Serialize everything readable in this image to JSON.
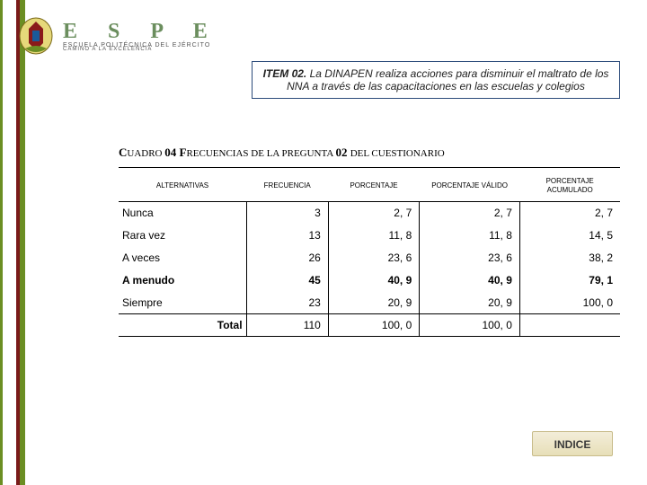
{
  "brand": {
    "letters": "E S P E",
    "sub": "ESCUELA POLITÉCNICA DEL EJÉRCITO",
    "tag": "CAMINO A LA EXCELENCIA"
  },
  "itemBox": {
    "label": "ITEM 02.",
    "text": " La DINAPEN realiza acciones para disminuir el maltrato de los NNA a través de las capacitaciones en las escuelas y colegios"
  },
  "cuadroTitle": "CUADRO 04 FRECUENCIAS DE LA PREGUNTA 02 DEL CUESTIONARIO",
  "table": {
    "headers": [
      "ALTERNATIVAS",
      "FRECUENCIA",
      "PORCENTAJE",
      "PORCENTAJE VÁLIDO",
      "PORCENTAJE ACUMULADO"
    ],
    "rows": [
      {
        "alt": "Nunca",
        "freq": "3",
        "pct": "2, 7",
        "pctv": "2, 7",
        "pcta": "2, 7",
        "bold": false
      },
      {
        "alt": "Rara vez",
        "freq": "13",
        "pct": "11, 8",
        "pctv": "11, 8",
        "pcta": "14, 5",
        "bold": false
      },
      {
        "alt": "A veces",
        "freq": "26",
        "pct": "23, 6",
        "pctv": "23, 6",
        "pcta": "38, 2",
        "bold": false
      },
      {
        "alt": "A menudo",
        "freq": "45",
        "pct": "40, 9",
        "pctv": "40, 9",
        "pcta": "79, 1",
        "bold": true
      },
      {
        "alt": "Siempre",
        "freq": "23",
        "pct": "20, 9",
        "pctv": "20, 9",
        "pcta": "100, 0",
        "bold": false
      }
    ],
    "total": {
      "label": "Total",
      "freq": "110",
      "pct": "100, 0",
      "pctv": "100, 0",
      "pcta": ""
    }
  },
  "indice": "INDICE",
  "colors": {
    "green": "#6b8e5e",
    "darkred": "#7a1a1a",
    "boxBorder": "#2b4a7a",
    "btnBg1": "#f3edd9",
    "btnBg2": "#e7dfb8"
  }
}
